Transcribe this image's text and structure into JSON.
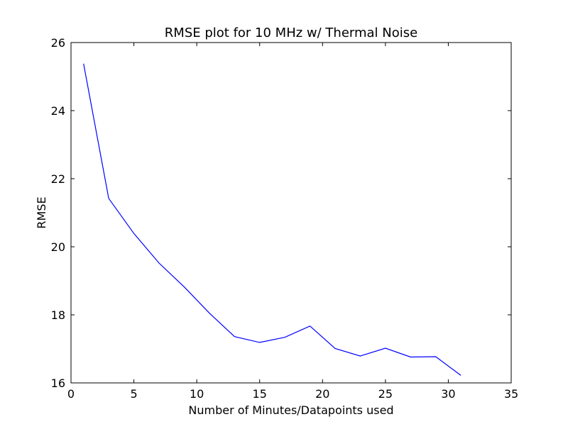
{
  "chart_data": {
    "type": "line",
    "title": "RMSE plot for 10 MHz w/ Thermal Noise",
    "xlabel": "Number of Minutes/Datapoints used",
    "ylabel": "RMSE",
    "xlim": [
      0,
      35
    ],
    "ylim": [
      16,
      26
    ],
    "x_ticks": [
      0,
      5,
      10,
      15,
      20,
      25,
      30,
      35
    ],
    "y_ticks": [
      16,
      18,
      20,
      22,
      24,
      26
    ],
    "grid": false,
    "line_color": "#0000ff",
    "series": [
      {
        "x": [
          1,
          3,
          5,
          7,
          9,
          11,
          13,
          15,
          17,
          19,
          21,
          23,
          25,
          27,
          29,
          31
        ],
        "y": [
          25.38,
          21.42,
          20.39,
          19.52,
          18.82,
          18.05,
          17.36,
          17.19,
          17.34,
          17.67,
          17.01,
          16.79,
          17.02,
          16.76,
          16.77,
          16.22
        ]
      }
    ]
  }
}
